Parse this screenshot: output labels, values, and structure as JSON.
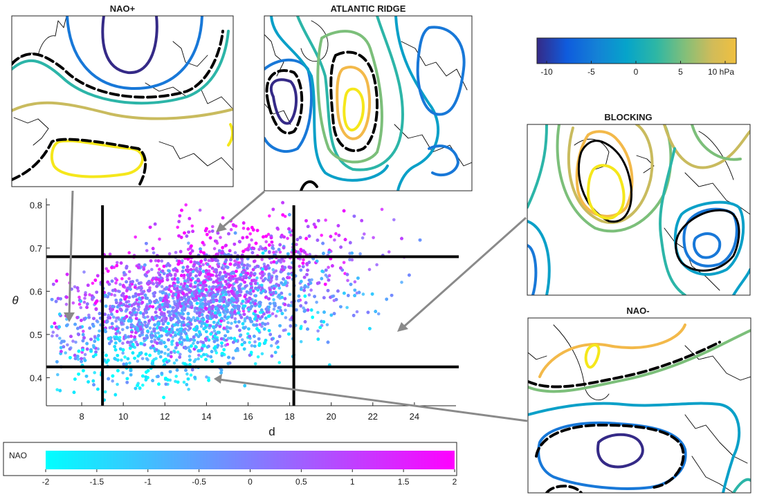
{
  "chart_data": {
    "type": "scatter",
    "xlabel": "d",
    "ylabel": "θ",
    "xlim": [
      6.3,
      26.0
    ],
    "ylim": [
      0.335,
      0.815
    ],
    "x_ticks": [
      8,
      10,
      12,
      14,
      16,
      18,
      20,
      22,
      24
    ],
    "y_ticks": [
      0.4,
      0.5,
      0.6,
      0.7,
      0.8
    ],
    "vertical_lines": [
      9.0,
      18.2
    ],
    "horizontal_lines": [
      0.425,
      0.68
    ],
    "point_count_approx": 9000,
    "point_cloud": {
      "center_d": 13.5,
      "center_theta": 0.57,
      "d_spread": 3.1,
      "theta_spread": 0.072,
      "slope": 0.012
    },
    "color_variable": "NAO",
    "colorbar": {
      "label": "NAO",
      "min": -2,
      "max": 2,
      "ticks": [
        -2,
        -1.5,
        -1,
        -0.5,
        0,
        0.5,
        1,
        1.5,
        2
      ],
      "colors": [
        "#00ffff",
        "#ff00ff"
      ]
    },
    "pressure_colorbar": {
      "ticks": [
        "-10",
        "-5",
        "0",
        "5",
        "10 hPa"
      ],
      "min": -10,
      "max": 10,
      "colors": [
        "#352a87",
        "#0f5cdd",
        "#1481d6",
        "#06a4ca",
        "#2eb7a4",
        "#87bf77",
        "#d1bb59",
        "#fed535"
      ]
    },
    "maps": [
      {
        "title": "NAO+"
      },
      {
        "title": "ATLANTIC RIDGE"
      },
      {
        "title": "BLOCKING"
      },
      {
        "title": "NAO-"
      }
    ],
    "contour_palette": [
      "#352a87",
      "#1878d8",
      "#0ba0c8",
      "#2cb5a8",
      "#7cbf7a",
      "#c9bb5e",
      "#f3b94a",
      "#f5e71b"
    ]
  }
}
